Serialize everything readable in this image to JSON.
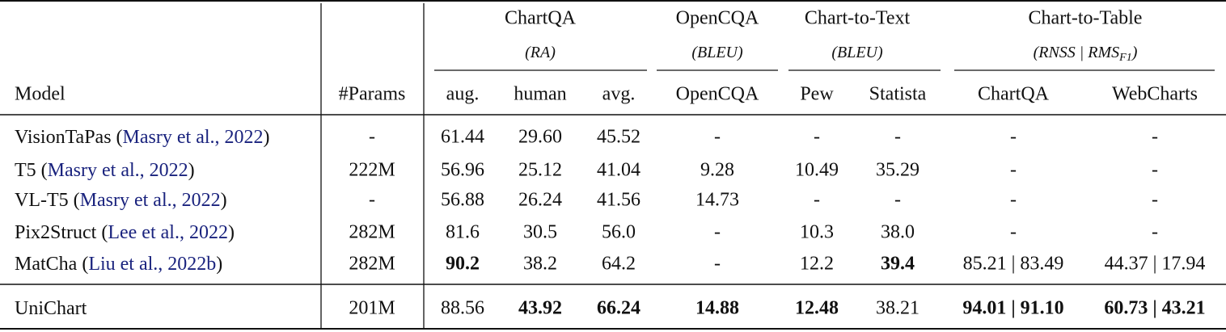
{
  "table": {
    "groups": [
      {
        "title": "ChartQA",
        "metric": {
          "pre": "(RA)"
        }
      },
      {
        "title": "OpenCQA",
        "metric": {
          "pre": "(BLEU)"
        }
      },
      {
        "title": "Chart-to-Text",
        "metric": {
          "pre": "(BLEU)"
        }
      },
      {
        "title": "Chart-to-Table",
        "metric": {
          "pre": "(RNSS | RMS",
          "sub": "F1",
          "post": ")"
        }
      }
    ],
    "columns": [
      "Model",
      "#Params",
      "aug.",
      "human",
      "avg.",
      "OpenCQA",
      "Pew",
      "Statista",
      "ChartQA",
      "WebCharts"
    ],
    "rows": [
      {
        "model": "VisionTaPas",
        "cite": [
          " (",
          "Masry et al., 2022",
          ")"
        ],
        "params": "-",
        "values": [
          "61.44",
          "29.60",
          "45.52",
          "-",
          "-",
          "-",
          "-",
          "-"
        ],
        "bold": []
      },
      {
        "model": "T5",
        "cite": [
          " (",
          "Masry et al., 2022",
          ")"
        ],
        "params": "222M",
        "values": [
          "56.96",
          "25.12",
          "41.04",
          "9.28",
          "10.49",
          "35.29",
          "-",
          "-"
        ],
        "bold": []
      },
      {
        "model": "VL-T5",
        "cite": [
          " (",
          "Masry et al., 2022",
          ")"
        ],
        "params": "-",
        "values": [
          "56.88",
          "26.24",
          "41.56",
          "14.73",
          "-",
          "-",
          "-",
          "-"
        ],
        "bold": []
      },
      {
        "model": "Pix2Struct",
        "cite": [
          " (",
          "Lee et al., 2022",
          ")"
        ],
        "params": "282M",
        "values": [
          "81.6",
          "30.5",
          "56.0",
          "-",
          "10.3",
          "38.0",
          "-",
          "-"
        ],
        "bold": []
      },
      {
        "model": "MatCha",
        "cite": [
          " (",
          "Liu et al., 2022b",
          ")"
        ],
        "params": "282M",
        "values": [
          "90.2",
          "38.2",
          "64.2",
          "-",
          "12.2",
          "39.4",
          "85.21 | 83.49",
          "44.37 | 17.94"
        ],
        "bold": [
          0,
          5
        ]
      },
      {
        "model": "UniChart",
        "params": "201M",
        "values": [
          "88.56",
          "43.92",
          "66.24",
          "14.88",
          "12.48",
          "38.21",
          "94.01 | 91.10",
          "60.73 | 43.21"
        ],
        "bold": [
          1,
          2,
          3,
          4,
          6,
          7
        ]
      }
    ]
  }
}
